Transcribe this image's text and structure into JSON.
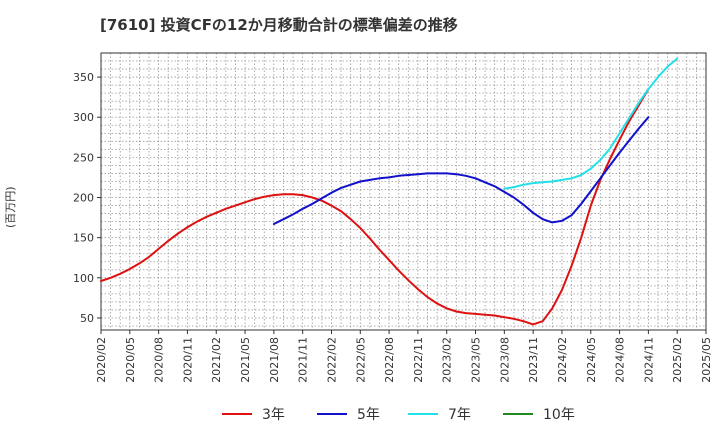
{
  "chart_data": {
    "type": "line",
    "title": "[7610]  投資CFの12か月移動合計の標準偏差の推移",
    "ylabel": "(百万円)",
    "xlabel": "",
    "ylim": [
      35,
      380
    ],
    "yticks": [
      50,
      100,
      150,
      200,
      250,
      300,
      350
    ],
    "xticks": [
      "2020/02",
      "2020/05",
      "2020/08",
      "2020/11",
      "2021/02",
      "2021/05",
      "2021/08",
      "2021/11",
      "2022/02",
      "2022/05",
      "2022/08",
      "2022/11",
      "2023/02",
      "2023/05",
      "2023/08",
      "2023/11",
      "2024/02",
      "2024/05",
      "2024/08",
      "2024/11",
      "2025/02",
      "2025/05"
    ],
    "grid": true,
    "legend_position": "bottom",
    "series": [
      {
        "name": "3年",
        "color": "#dd1111",
        "points": [
          [
            "2020/02",
            96
          ],
          [
            "2020/03",
            100
          ],
          [
            "2020/04",
            105
          ],
          [
            "2020/05",
            111
          ],
          [
            "2020/06",
            118
          ],
          [
            "2020/07",
            126
          ],
          [
            "2020/08",
            136
          ],
          [
            "2020/09",
            146
          ],
          [
            "2020/10",
            155
          ],
          [
            "2020/11",
            163
          ],
          [
            "2020/12",
            170
          ],
          [
            "2021/01",
            176
          ],
          [
            "2021/02",
            181
          ],
          [
            "2021/03",
            186
          ],
          [
            "2021/04",
            190
          ],
          [
            "2021/05",
            194
          ],
          [
            "2021/06",
            198
          ],
          [
            "2021/07",
            201
          ],
          [
            "2021/08",
            203
          ],
          [
            "2021/09",
            204
          ],
          [
            "2021/10",
            204
          ],
          [
            "2021/11",
            203
          ],
          [
            "2021/12",
            200
          ],
          [
            "2022/01",
            196
          ],
          [
            "2022/02",
            190
          ],
          [
            "2022/03",
            183
          ],
          [
            "2022/04",
            173
          ],
          [
            "2022/05",
            162
          ],
          [
            "2022/06",
            149
          ],
          [
            "2022/07",
            135
          ],
          [
            "2022/08",
            122
          ],
          [
            "2022/09",
            109
          ],
          [
            "2022/10",
            97
          ],
          [
            "2022/11",
            86
          ],
          [
            "2022/12",
            76
          ],
          [
            "2023/01",
            68
          ],
          [
            "2023/02",
            62
          ],
          [
            "2023/03",
            58
          ],
          [
            "2023/04",
            56
          ],
          [
            "2023/05",
            55
          ],
          [
            "2023/06",
            54
          ],
          [
            "2023/07",
            53
          ],
          [
            "2023/08",
            51
          ],
          [
            "2023/09",
            49
          ],
          [
            "2023/10",
            46
          ],
          [
            "2023/11",
            42
          ],
          [
            "2023/12",
            46
          ],
          [
            "2024/01",
            62
          ],
          [
            "2024/02",
            85
          ],
          [
            "2024/03",
            115
          ],
          [
            "2024/04",
            150
          ],
          [
            "2024/05",
            190
          ],
          [
            "2024/06",
            222
          ],
          [
            "2024/07",
            248
          ],
          [
            "2024/08",
            272
          ],
          [
            "2024/09",
            295
          ],
          [
            "2024/10",
            315
          ],
          [
            "2024/11",
            335
          ]
        ]
      },
      {
        "name": "5年",
        "color": "#1111cc",
        "points": [
          [
            "2021/08",
            167
          ],
          [
            "2021/09",
            173
          ],
          [
            "2021/10",
            179
          ],
          [
            "2021/11",
            186
          ],
          [
            "2021/12",
            192
          ],
          [
            "2022/01",
            199
          ],
          [
            "2022/02",
            206
          ],
          [
            "2022/03",
            212
          ],
          [
            "2022/04",
            216
          ],
          [
            "2022/05",
            220
          ],
          [
            "2022/06",
            222
          ],
          [
            "2022/07",
            224
          ],
          [
            "2022/08",
            225
          ],
          [
            "2022/09",
            227
          ],
          [
            "2022/10",
            228
          ],
          [
            "2022/11",
            229
          ],
          [
            "2022/12",
            230
          ],
          [
            "2023/01",
            230
          ],
          [
            "2023/02",
            230
          ],
          [
            "2023/03",
            229
          ],
          [
            "2023/04",
            227
          ],
          [
            "2023/05",
            224
          ],
          [
            "2023/06",
            219
          ],
          [
            "2023/07",
            214
          ],
          [
            "2023/08",
            207
          ],
          [
            "2023/09",
            200
          ],
          [
            "2023/10",
            191
          ],
          [
            "2023/11",
            181
          ],
          [
            "2023/12",
            173
          ],
          [
            "2024/01",
            169
          ],
          [
            "2024/02",
            171
          ],
          [
            "2024/03",
            178
          ],
          [
            "2024/04",
            192
          ],
          [
            "2024/05",
            208
          ],
          [
            "2024/06",
            224
          ],
          [
            "2024/07",
            240
          ],
          [
            "2024/08",
            256
          ],
          [
            "2024/09",
            271
          ],
          [
            "2024/10",
            286
          ],
          [
            "2024/11",
            300
          ]
        ]
      },
      {
        "name": "7年",
        "color": "#22e0e8",
        "points": [
          [
            "2023/08",
            211
          ],
          [
            "2023/09",
            213
          ],
          [
            "2023/10",
            216
          ],
          [
            "2023/11",
            218
          ],
          [
            "2023/12",
            219
          ],
          [
            "2024/01",
            220
          ],
          [
            "2024/02",
            222
          ],
          [
            "2024/03",
            224
          ],
          [
            "2024/04",
            228
          ],
          [
            "2024/05",
            236
          ],
          [
            "2024/06",
            247
          ],
          [
            "2024/07",
            261
          ],
          [
            "2024/08",
            280
          ],
          [
            "2024/09",
            299
          ],
          [
            "2024/10",
            318
          ],
          [
            "2024/11",
            335
          ],
          [
            "2024/12",
            350
          ],
          [
            "2025/01",
            363
          ],
          [
            "2025/02",
            373
          ]
        ]
      },
      {
        "name": "10年",
        "color": "#228822",
        "points": []
      }
    ]
  }
}
